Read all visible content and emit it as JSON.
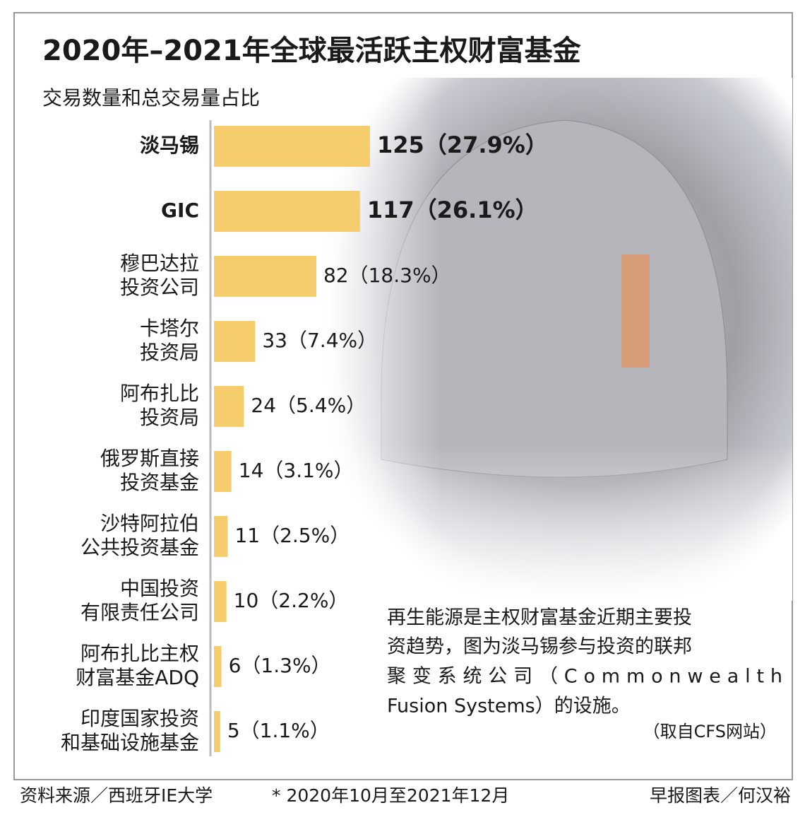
{
  "chart_data": {
    "type": "bar",
    "orientation": "horizontal",
    "title": "2020年–2021年全球最活跃主权财富基金",
    "subtitle": "交易数量和总交易量占比",
    "categories": [
      [
        "淡马锡"
      ],
      [
        "GIC"
      ],
      [
        "穆巴达拉",
        "投资公司"
      ],
      [
        "卡塔尔",
        "投资局"
      ],
      [
        "阿布扎比",
        "投资局"
      ],
      [
        "俄罗斯直接",
        "投资基金"
      ],
      [
        "沙特阿拉伯",
        "公共投资基金"
      ],
      [
        "中国投资",
        "有限责任公司"
      ],
      [
        "阿布扎比主权",
        "财富基金ADQ"
      ],
      [
        "印度国家投资",
        "和基础设施基金"
      ]
    ],
    "values": [
      125,
      117,
      82,
      33,
      24,
      14,
      11,
      10,
      6,
      5
    ],
    "value_labels": [
      "125（27.9%）",
      "117（26.1%）",
      "82（18.3%）",
      "33（7.4%）",
      "24（5.4%）",
      "14（3.1%）",
      "11（2.5%）",
      "10（2.2%）",
      "6（1.3%）",
      "5（1.1%）"
    ],
    "color": "#f6cd6c"
  },
  "notes": {
    "caption": [
      "再生能源是主权财富基金近期主要投",
      "资趋势，图为淡马锡参与投资的联邦",
      "聚变系统公司（Commonwealth",
      "Fusion Systems）的设施。"
    ],
    "credit": "（取自CFS网站）",
    "source": "资料来源／西班牙IE大学",
    "period": "* 2020年10月至2021年12月",
    "byline": "早报图表／何汉裕"
  }
}
